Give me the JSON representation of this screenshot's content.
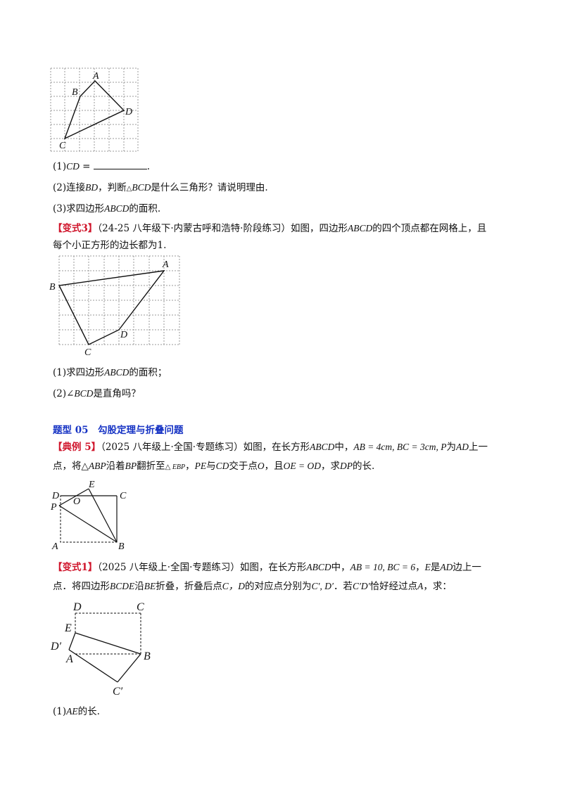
{
  "figure1": {
    "labels": {
      "a": "A",
      "b": "B",
      "c": "C",
      "d": "D"
    }
  },
  "section_a": {
    "q1_prefix": "(1)",
    "q1_math": "CD",
    "q1_eq": " = ",
    "q1_end": ".",
    "q2_a": "(2)连接",
    "q2_bd": "BD",
    "q2_b": "，判断",
    "q2_tri": "△",
    "q2_bcd": "BCD",
    "q2_c": "是什么三角形？请说明理由.",
    "q3_a": "(3)求四边形",
    "q3_abcd": "ABCD",
    "q3_b": "的面积."
  },
  "variant3": {
    "tag": "【变式3】",
    "line1_a": "（24-25 八年级下·内蒙古呼和浩特·阶段练习）如图，四边形",
    "line1_abcd": "ABCD",
    "line1_b": "的四个顶点都在网格上，且",
    "line2_a": "每个小正方形的边长都为",
    "line2_one": "1",
    "line2_b": "."
  },
  "figure2": {
    "labels": {
      "a": "A",
      "b": "B",
      "c": "C",
      "d": "D"
    }
  },
  "section_b": {
    "q1_a": "(1)求四边形",
    "q1_abcd": "ABCD",
    "q1_b": "的面积；",
    "q2_a": "(2)",
    "q2_angle": "∠BCD",
    "q2_b": "是直角吗？"
  },
  "type05": {
    "heading": "题型 05　勾股定理与折叠问题"
  },
  "example5": {
    "tag": "【典例 5】",
    "line1_a": "（2025 八年级上·全国·专题练习）如图，在长方形",
    "line1_abcd": "ABCD",
    "line1_b": "中，",
    "line1_math": "AB = 4cm, BC = 3cm, P",
    "line1_c": "为",
    "line1_ad": "AD",
    "line1_d": "上一",
    "line2_a": "点，将",
    "line2_tri": "△ABP",
    "line2_b": "沿着",
    "line2_bp": "BP",
    "line2_c": "翻折至",
    "line2_ebp": "△ EBP",
    "line2_d": "，",
    "line2_pe": "PE",
    "line2_e": "与",
    "line2_cd": "CD",
    "line2_f": "交于点",
    "line2_o": "O",
    "line2_g": "，且",
    "line2_eq": "OE = OD",
    "line2_h": "，求",
    "line2_dp": "DP",
    "line2_i": "的长."
  },
  "figure3": {
    "labels": {
      "d": "D",
      "e": "E",
      "c": "C",
      "o": "O",
      "p": "P",
      "a": "A",
      "b": "B"
    }
  },
  "variant1": {
    "tag": "【变式1】",
    "line1_a": "（2025 八年级上·全国·专题练习）如图，在长方形",
    "line1_abcd": "ABCD",
    "line1_b": "中，",
    "line1_math": "AB = 10, BC = 6",
    "line1_c": "，",
    "line1_e": "E",
    "line1_d": "是",
    "line1_ad": "AD",
    "line1_f": "边上一",
    "line2_a": "点．将四边形",
    "line2_bcde": "BCDE",
    "line2_b": "沿",
    "line2_be": "BE",
    "line2_c": "折叠，折叠后点",
    "line2_cd": "C，D",
    "line2_d": "的对应点分别为",
    "line2_primes": "C′, D′",
    "line2_e": "．若",
    "line2_cpd": "C′D′",
    "line2_f": "恰好经过点",
    "line2_a_pt": "A",
    "line2_g": "，求："
  },
  "figure4": {
    "labels": {
      "d": "D",
      "c": "C",
      "e": "E",
      "dp": "D′",
      "a": "A",
      "b": "B",
      "cp": "C′"
    }
  },
  "section_c": {
    "q1_a": "(1)",
    "q1_ae": "AE",
    "q1_b": "的长."
  }
}
